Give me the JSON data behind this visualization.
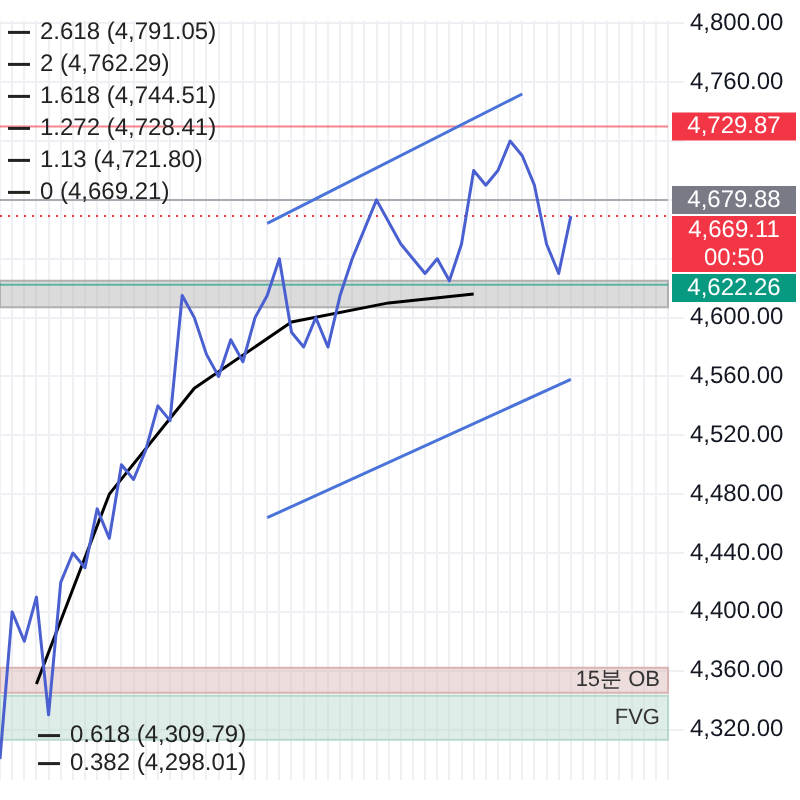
{
  "chart_data": {
    "type": "line",
    "categories": [
      null,
      null,
      null,
      null,
      null,
      null,
      null,
      null,
      null,
      null,
      null,
      null,
      null,
      null,
      null,
      null,
      null,
      null,
      null,
      null,
      null,
      null,
      null,
      null,
      null,
      null,
      null,
      null,
      null,
      null,
      null,
      null,
      null,
      null,
      null,
      null,
      null,
      null,
      null,
      null,
      null,
      null,
      null,
      null,
      null,
      null,
      null,
      null,
      null,
      null,
      null,
      null,
      null,
      null,
      null,
      null
    ],
    "series": [
      {
        "color": "#4a5fd0",
        "values": [
          4300,
          4400,
          4380,
          4410,
          4330,
          4420,
          4440,
          4430,
          4470,
          4450,
          4500,
          4490,
          4510,
          4540,
          4530,
          4615,
          4600,
          4575,
          4560,
          4585,
          4570,
          4600,
          4615,
          4640,
          4590,
          4580,
          4600,
          4580,
          4615,
          4640,
          4660,
          4680,
          4665,
          4650,
          4640,
          4630,
          4640,
          4625,
          4650,
          4700,
          4690,
          4700,
          4720,
          4710,
          4690,
          4650,
          4630,
          4669,
          null,
          null,
          null,
          null,
          null,
          null,
          null,
          null
        ]
      },
      {
        "color": "#000000",
        "values": [
          null,
          null,
          null,
          4351,
          null,
          null,
          null,
          null,
          null,
          4480,
          null,
          null,
          null,
          null,
          null,
          null,
          4552,
          null,
          null,
          null,
          null,
          null,
          null,
          null,
          4597,
          null,
          null,
          null,
          null,
          null,
          null,
          null,
          4610,
          null,
          null,
          null,
          null,
          null,
          null,
          4616,
          null,
          null,
          null,
          null,
          null,
          null,
          null,
          null,
          null,
          null,
          null,
          null,
          null,
          null,
          null,
          null
        ]
      },
      {
        "color": "#4a73d9",
        "values": [
          null,
          null,
          null,
          null,
          null,
          null,
          null,
          null,
          null,
          null,
          null,
          null,
          null,
          null,
          null,
          null,
          null,
          null,
          null,
          null,
          null,
          null,
          4664,
          null,
          null,
          null,
          null,
          null,
          null,
          null,
          null,
          null,
          null,
          null,
          null,
          null,
          null,
          null,
          null,
          null,
          null,
          null,
          null,
          4752,
          null,
          null,
          null,
          null,
          null,
          null,
          null,
          null,
          null,
          null,
          null,
          null
        ]
      },
      {
        "color": "#4a73d9",
        "values": [
          null,
          null,
          null,
          null,
          null,
          null,
          null,
          null,
          null,
          null,
          null,
          null,
          null,
          null,
          null,
          null,
          null,
          null,
          null,
          null,
          null,
          null,
          4464,
          null,
          null,
          null,
          null,
          null,
          null,
          null,
          null,
          null,
          null,
          null,
          null,
          null,
          null,
          null,
          null,
          null,
          null,
          null,
          null,
          null,
          null,
          null,
          null,
          4558,
          null,
          null,
          null,
          null,
          null,
          null,
          null,
          null
        ]
      }
    ],
    "ylim": [
      4286,
      4802
    ],
    "yticks": [
      {
        "value": 4320,
        "label": "4,320.00"
      },
      {
        "value": 4360,
        "label": "4,360.00"
      },
      {
        "value": 4400,
        "label": "4,400.00"
      },
      {
        "value": 4440,
        "label": "4,440.00"
      },
      {
        "value": 4480,
        "label": "4,480.00"
      },
      {
        "value": 4520,
        "label": "4,520.00"
      },
      {
        "value": 4560,
        "label": "4,560.00"
      },
      {
        "value": 4600,
        "label": "4,600.00"
      },
      {
        "value": 4640,
        "label": null
      },
      {
        "value": 4680,
        "label": null
      },
      {
        "value": 4720,
        "label": null
      },
      {
        "value": 4760,
        "label": "4,760.00"
      },
      {
        "value": 4800,
        "label": "4,800.00"
      }
    ],
    "grid": true,
    "marker": "none",
    "annotations": [
      "2.618 (4,791.05)",
      "2 (4,762.29)",
      "1.618 (4,744.51)",
      "1.272 (4,728.41)",
      "1.13 (4,721.80)",
      "0 (4,669.21)",
      "0.618 (4,309.79)",
      "0.382 (4,298.01)"
    ],
    "ref_lines": [
      {
        "axis": "y",
        "value": 4729.87,
        "label": "4,729.87",
        "color": "#f23645"
      },
      {
        "axis": "y",
        "value": 4679.88,
        "label": "4,679.88",
        "color": "#787b86"
      },
      {
        "axis": "y",
        "value": 4669.11,
        "label": "4,669.11 00:50",
        "color": "#f23645",
        "line_style": "dotted"
      },
      {
        "axis": "y",
        "value": 4622.26,
        "label": "4,622.26",
        "color": "#089981"
      }
    ],
    "bands": [
      {
        "axis": "y",
        "from": 4607,
        "to": 4625,
        "color": "#b0b0b0"
      },
      {
        "axis": "y",
        "from": 4345,
        "to": 4362,
        "label": "15분 OB",
        "color": "#d9b3b3"
      },
      {
        "axis": "y",
        "from": 4313,
        "to": 4343,
        "label": "FVG",
        "color": "#b8d8cc"
      }
    ]
  }
}
